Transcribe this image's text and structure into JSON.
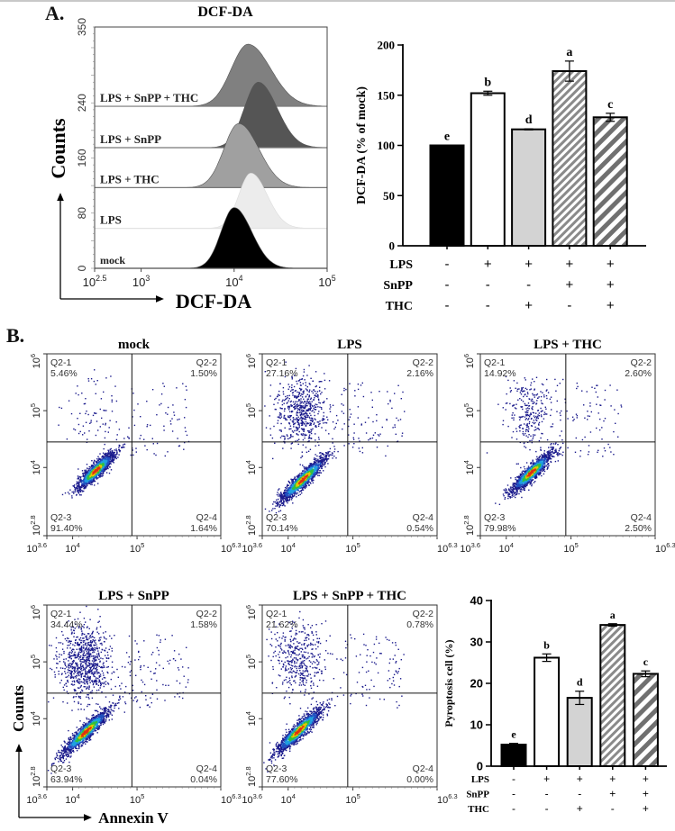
{
  "figure": {
    "panel_a_label": "A.",
    "panel_b_label": "B."
  },
  "chart_data": [
    {
      "id": "dcf-histogram",
      "type": "area",
      "title": "DCF-DA",
      "xlabel": "DCF-DA",
      "ylabel": "Counts",
      "x_scale": "log10",
      "xlim_log10": [
        2.5,
        5
      ],
      "x_tick_labels": [
        {
          "log": 2.5,
          "base": "10",
          "exp": "2.5"
        },
        {
          "log": 3,
          "base": "10",
          "exp": "3"
        },
        {
          "log": 4,
          "base": "10",
          "exp": "4"
        },
        {
          "log": 5,
          "base": "10",
          "exp": "5"
        }
      ],
      "ylim": [
        0,
        350
      ],
      "y_ticks": [
        0,
        80,
        160,
        240,
        350
      ],
      "series": [
        {
          "name": "mock",
          "offset": 0,
          "peak_log10": 4.0,
          "peak_height": 88,
          "width": 0.14,
          "color": "#000000"
        },
        {
          "name": "LPS",
          "offset": 58,
          "peak_log10": 4.18,
          "peak_height": 80,
          "width": 0.13,
          "color": "#ececec"
        },
        {
          "name": "LPS + THC",
          "offset": 117,
          "peak_log10": 4.05,
          "peak_height": 93,
          "width": 0.16,
          "color": "#a0a0a0"
        },
        {
          "name": "LPS + SnPP",
          "offset": 175,
          "peak_log10": 4.26,
          "peak_height": 95,
          "width": 0.15,
          "color": "#555555"
        },
        {
          "name": "LPS + SnPP  + THC",
          "offset": 235,
          "peak_log10": 4.15,
          "peak_height": 90,
          "width": 0.18,
          "color": "#808080"
        }
      ]
    },
    {
      "id": "dcf-bar",
      "type": "bar",
      "title": "",
      "ylabel": "DCF-DA (% of mock)",
      "ylim": [
        0,
        200
      ],
      "y_ticks": [
        0,
        50,
        100,
        150,
        200
      ],
      "categories": [
        "mock",
        "LPS",
        "LPS+THC",
        "LPS+SnPP",
        "LPS+SnPP+THC"
      ],
      "values": [
        100,
        152,
        116,
        174,
        128
      ],
      "errors": [
        0,
        2,
        0.5,
        10,
        4
      ],
      "significance": [
        "e",
        "b",
        "d",
        "a",
        "c"
      ],
      "fills": [
        "solid-black",
        "white",
        "light-gray",
        "hatch-fine",
        "hatch-coarse"
      ],
      "treatment_rows": [
        {
          "label": "LPS",
          "signs": [
            "-",
            "+",
            "+",
            "+",
            "+"
          ]
        },
        {
          "label": "SnPP",
          "signs": [
            "-",
            "-",
            "-",
            "+",
            "+"
          ]
        },
        {
          "label": "THC",
          "signs": [
            "-",
            "-",
            "+",
            "-",
            "+"
          ]
        }
      ]
    },
    {
      "id": "annexin-scatter",
      "type": "scatter",
      "xlabel": "Annexin V",
      "ylabel": "Counts",
      "x_tick_labels": [
        {
          "base": "10",
          "exp": "3.6"
        },
        {
          "base": "10",
          "exp": "4"
        },
        {
          "base": "10",
          "exp": "5"
        },
        {
          "base": "10",
          "exp": "6.3"
        }
      ],
      "y_tick_labels": [
        {
          "base": "10",
          "exp": "2.8"
        },
        {
          "base": "10",
          "exp": "4"
        },
        {
          "base": "10",
          "exp": "5"
        },
        {
          "base": "10",
          "exp": "6"
        }
      ],
      "xlim_log10": [
        3.6,
        6.3
      ],
      "ylim_log10": [
        2.8,
        6
      ],
      "gate_x_log10": 4.92,
      "gate_y_log10": 4.45,
      "plots": [
        {
          "title": "mock",
          "quadrants": {
            "q1": {
              "name": "Q2-1",
              "pct": "5.46%"
            },
            "q2": {
              "name": "Q2-2",
              "pct": "1.50%"
            },
            "q3": {
              "name": "Q2-3",
              "pct": "91.40%"
            },
            "q4": {
              "name": "Q2-4",
              "pct": "1.64%"
            }
          }
        },
        {
          "title": "LPS",
          "quadrants": {
            "q1": {
              "name": "Q2-1",
              "pct": "27.16%"
            },
            "q2": {
              "name": "Q2-2",
              "pct": "2.16%"
            },
            "q3": {
              "name": "Q2-3",
              "pct": "70.14%"
            },
            "q4": {
              "name": "Q2-4",
              "pct": "0.54%"
            }
          }
        },
        {
          "title": "LPS + THC",
          "quadrants": {
            "q1": {
              "name": "Q2-1",
              "pct": "14.92%"
            },
            "q2": {
              "name": "Q2-2",
              "pct": "2.60%"
            },
            "q3": {
              "name": "Q2-3",
              "pct": "79.98%"
            },
            "q4": {
              "name": "Q2-4",
              "pct": "2.50%"
            }
          }
        },
        {
          "title": "LPS + SnPP",
          "quadrants": {
            "q1": {
              "name": "Q2-1",
              "pct": "34.44%"
            },
            "q2": {
              "name": "Q2-2",
              "pct": "1.58%"
            },
            "q3": {
              "name": "Q2-3",
              "pct": "63.94%"
            },
            "q4": {
              "name": "Q2-4",
              "pct": "0.04%"
            }
          }
        },
        {
          "title": "LPS + SnPP + THC",
          "quadrants": {
            "q1": {
              "name": "Q2-1",
              "pct": "21.62%"
            },
            "q2": {
              "name": "Q2-2",
              "pct": "0.78%"
            },
            "q3": {
              "name": "Q2-3",
              "pct": "77.60%"
            },
            "q4": {
              "name": "Q2-4",
              "pct": "0.00%"
            }
          }
        }
      ]
    },
    {
      "id": "pyroptosis-bar",
      "type": "bar",
      "title": "",
      "ylabel": "Pyroptosis cell (%)",
      "ylim": [
        0,
        40
      ],
      "y_ticks": [
        0,
        10,
        20,
        30,
        40
      ],
      "categories": [
        "mock",
        "LPS",
        "LPS+THC",
        "LPS+SnPP",
        "LPS+SnPP+THC"
      ],
      "values": [
        5.2,
        26.2,
        16.5,
        34.1,
        22.3
      ],
      "errors": [
        0.3,
        0.9,
        1.6,
        0.3,
        0.7
      ],
      "significance": [
        "e",
        "b",
        "d",
        "a",
        "c"
      ],
      "fills": [
        "solid-black",
        "white",
        "light-gray",
        "hatch-fine",
        "hatch-coarse"
      ],
      "treatment_rows": [
        {
          "label": "LPS",
          "signs": [
            "-",
            "+",
            "+",
            "+",
            "+"
          ]
        },
        {
          "label": "SnPP",
          "signs": [
            "-",
            "-",
            "-",
            "+",
            "+"
          ]
        },
        {
          "label": "THC",
          "signs": [
            "-",
            "-",
            "+",
            "-",
            "+"
          ]
        }
      ]
    }
  ]
}
